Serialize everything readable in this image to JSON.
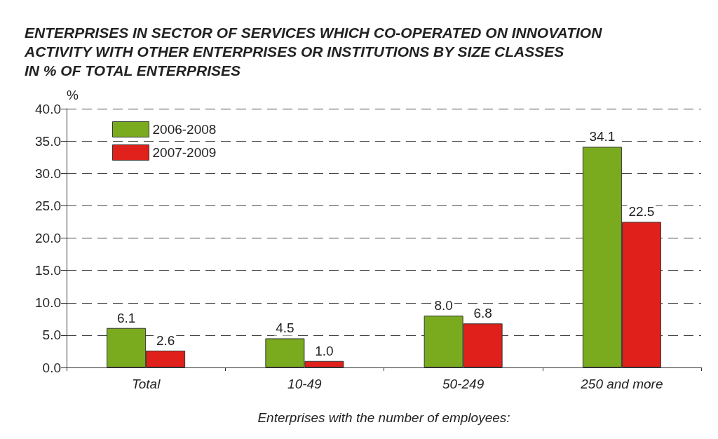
{
  "chart_data": {
    "type": "bar",
    "title": "ENTERPRISES IN SECTOR OF SERVICES WHICH CO-OPERATED ON INNOVATION\nACTIVITY WITH OTHER ENTERPRISES OR INSTITUTIONS BY SIZE CLASSES\nIN % OF TOTAL ENTERPRISES",
    "ylabel": "%",
    "xlabel": "Enterprises with the number of employees:",
    "categories": [
      "Total",
      "10-49",
      "50-249",
      "250 and more"
    ],
    "series": [
      {
        "name": "2006-2008",
        "color": "#7aab1e",
        "values": [
          6.1,
          4.5,
          8.0,
          34.1
        ],
        "value_labels": [
          "6.1",
          "4.5",
          "8.0",
          "34.1"
        ]
      },
      {
        "name": "2007-2009",
        "color": "#e0201b",
        "values": [
          2.6,
          1.0,
          6.8,
          22.5
        ],
        "value_labels": [
          "2.6",
          "1.0",
          "6.8",
          "22.5"
        ]
      }
    ],
    "ylim": [
      0,
      40
    ],
    "yticks": [
      {
        "value": 0,
        "label": "0.0"
      },
      {
        "value": 5,
        "label": "5.0"
      },
      {
        "value": 10,
        "label": "10.0"
      },
      {
        "value": 15,
        "label": "15.0"
      },
      {
        "value": 20,
        "label": "20.0"
      },
      {
        "value": 25,
        "label": "25.0"
      },
      {
        "value": 30,
        "label": "30.0"
      },
      {
        "value": 35,
        "label": "35.0"
      },
      {
        "value": 40,
        "label": "40.0"
      }
    ],
    "grid": "y",
    "legend": "top left"
  }
}
